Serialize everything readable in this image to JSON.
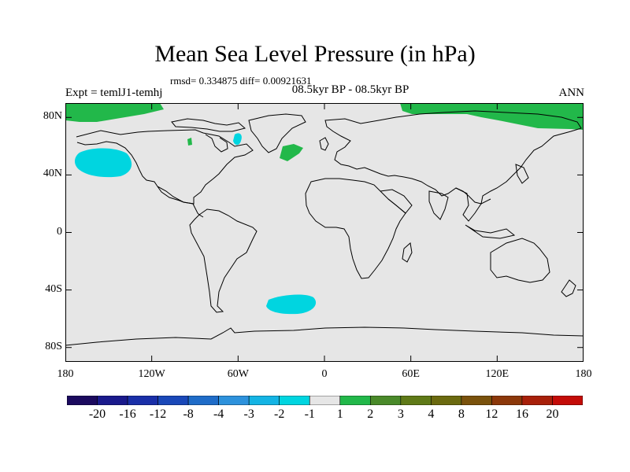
{
  "title": "Mean Sea Level Pressure (in hPa)",
  "stats": "rmsd= 0.334875 diff= 0.00921631",
  "period": "08.5kyr BP - 08.5kyr BP",
  "experiment": "Expt = temlJ1-temhj",
  "season": "ANN",
  "colors": {
    "ocean_bg": "#e6e6e6",
    "coast": "#000000",
    "negative_anomaly": "#00d5e0",
    "positive_anomaly": "#22b84a"
  },
  "axes": {
    "lat_ticks": [
      {
        "value": 80,
        "label": "80N"
      },
      {
        "value": 40,
        "label": "40N"
      },
      {
        "value": 0,
        "label": "0"
      },
      {
        "value": -40,
        "label": "40S"
      },
      {
        "value": -80,
        "label": "80S"
      }
    ],
    "lon_ticks": [
      {
        "value": -180,
        "label": "180"
      },
      {
        "value": -120,
        "label": "120W"
      },
      {
        "value": -60,
        "label": "60W"
      },
      {
        "value": 0,
        "label": "0"
      },
      {
        "value": 60,
        "label": "60E"
      },
      {
        "value": 120,
        "label": "120E"
      },
      {
        "value": 180,
        "label": "180"
      }
    ]
  },
  "colorbar": {
    "colors": [
      "#1b0a5e",
      "#1a1a8c",
      "#1a2fa8",
      "#1a48b8",
      "#1f6cc8",
      "#2d92dc",
      "#14b4e4",
      "#00d5e0",
      "#e6e6e6",
      "#22b84a",
      "#4a8a2a",
      "#5f7a18",
      "#6b6a10",
      "#7a520c",
      "#8c380a",
      "#a8200a",
      "#c40c08"
    ],
    "labels": [
      "-20",
      "-16",
      "-12",
      "-8",
      "-4",
      "-3",
      "-2",
      "-1",
      "1",
      "2",
      "3",
      "4",
      "8",
      "12",
      "16",
      "20"
    ]
  }
}
